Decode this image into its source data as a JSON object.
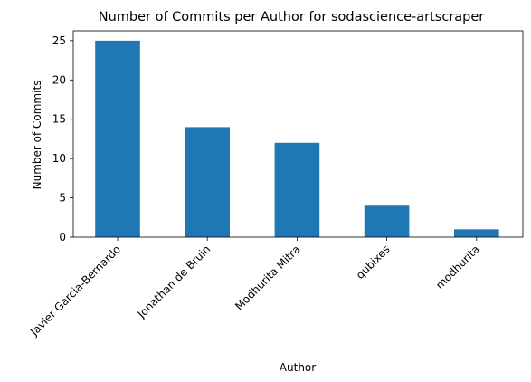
{
  "chart_data": {
    "type": "bar",
    "title": "Number of Commits per Author for sodascience-artscraper",
    "xlabel": "Author",
    "ylabel": "Number of Commits",
    "categories": [
      "Javier Garcia-Bernardo",
      "Jonathan de Bruin",
      "Modhurita Mitra",
      "qubixes",
      "modhurita"
    ],
    "values": [
      25,
      14,
      12,
      4,
      1
    ],
    "ylim": [
      0,
      26.25
    ],
    "yticks": [
      0,
      5,
      10,
      15,
      20,
      25
    ],
    "bar_color": "#1f77b4",
    "grid": false,
    "legend": "none"
  }
}
